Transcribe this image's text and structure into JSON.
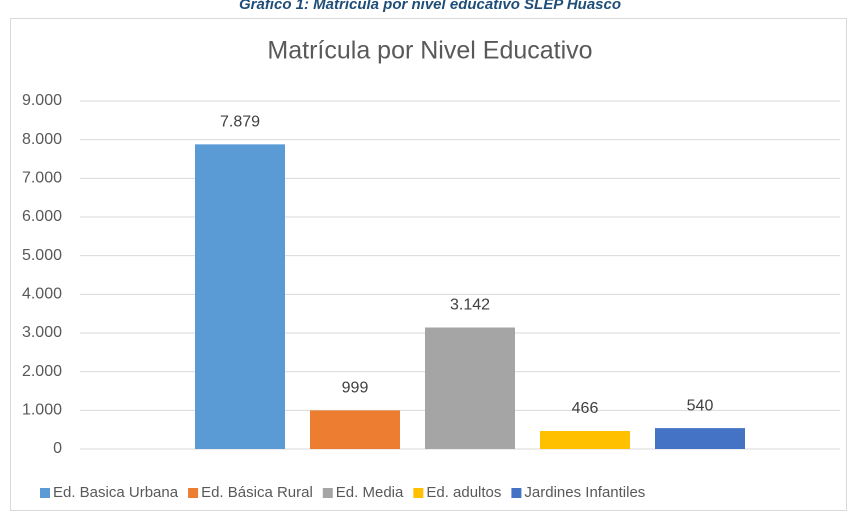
{
  "caption": "Gráfico 1: Matrícula por nivel educativo SLEP Huasco",
  "chart_data": {
    "type": "bar",
    "title": "Matrícula por Nivel Educativo",
    "categories": [
      null
    ],
    "series": [
      {
        "name": "Ed. Basica Urbana",
        "color": "#5b9bd5",
        "values": [
          7879
        ],
        "value_labels": [
          "7.879"
        ]
      },
      {
        "name": "Ed. Básica Rural",
        "color": "#ed7d31",
        "values": [
          999
        ],
        "value_labels": [
          "999"
        ]
      },
      {
        "name": "Ed. Media",
        "color": "#a5a5a5",
        "values": [
          3142
        ],
        "value_labels": [
          "3.142"
        ]
      },
      {
        "name": "Ed. adultos",
        "color": "#ffc000",
        "values": [
          466
        ],
        "value_labels": [
          "466"
        ]
      },
      {
        "name": "Jardines Infantiles",
        "color": "#4472c4",
        "values": [
          540
        ],
        "value_labels": [
          "540"
        ]
      }
    ],
    "ylim": [
      0,
      9000
    ],
    "yticks": [
      0,
      {
        "value": 1000,
        "label": "1.000"
      },
      {
        "value": 2000,
        "label": "2.000"
      },
      {
        "value": 3000,
        "label": "3.000"
      },
      {
        "value": 4000,
        "label": "4.000"
      },
      {
        "value": 5000,
        "label": "5.000"
      },
      {
        "value": 6000,
        "label": "6.000"
      },
      {
        "value": 7000,
        "label": "7.000"
      },
      {
        "value": 8000,
        "label": "8.000"
      },
      {
        "value": 9000,
        "label": "9.000"
      }
    ],
    "grid": true,
    "legend": "bottom"
  }
}
